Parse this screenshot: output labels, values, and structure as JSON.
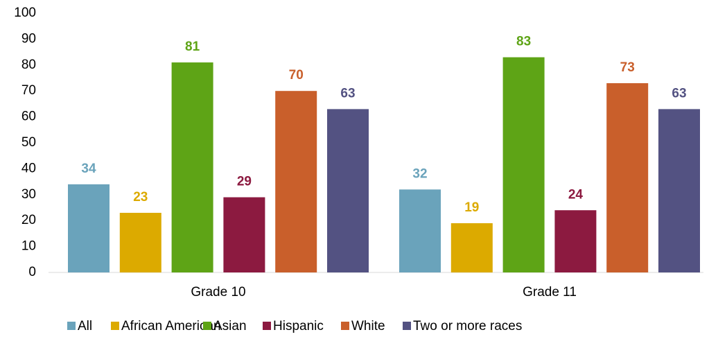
{
  "chart_data": {
    "type": "bar",
    "categories": [
      "Grade 10",
      "Grade 11"
    ],
    "series": [
      {
        "name": "All",
        "color": "#6aa3bb",
        "values": [
          34,
          32
        ]
      },
      {
        "name": "African American",
        "color": "#dcaa00",
        "values": [
          23,
          19
        ]
      },
      {
        "name": "Asian",
        "color": "#5ea416",
        "values": [
          81,
          83
        ]
      },
      {
        "name": "Hispanic",
        "color": "#8c1a40",
        "values": [
          29,
          24
        ]
      },
      {
        "name": "White",
        "color": "#c95f2b",
        "values": [
          70,
          73
        ]
      },
      {
        "name": "Two or more races",
        "color": "#535282",
        "values": [
          63,
          63
        ]
      }
    ],
    "ylim": [
      0,
      100
    ],
    "yticks": [
      0,
      10,
      20,
      30,
      40,
      50,
      60,
      70,
      80,
      90,
      100
    ],
    "grid": false,
    "legend": "bottom"
  }
}
